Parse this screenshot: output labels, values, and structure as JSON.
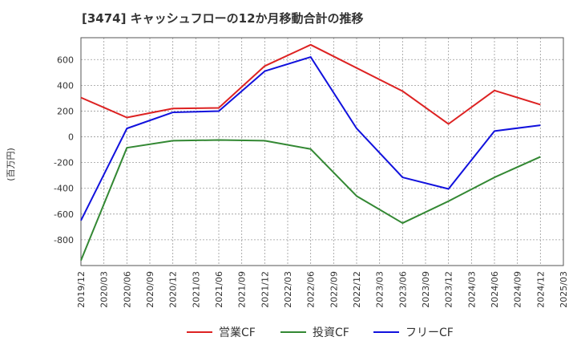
{
  "chart_data": {
    "type": "line",
    "title": "[3474]  キャッシュフローの12か月移動合計の推移",
    "xlabel": "",
    "ylabel": "(百万円)",
    "x": [
      "2019/12",
      "2020/03",
      "2020/06",
      "2020/09",
      "2020/12",
      "2021/03",
      "2021/06",
      "2021/09",
      "2021/12",
      "2022/03",
      "2022/06",
      "2022/09",
      "2022/12",
      "2023/03",
      "2023/06",
      "2023/09",
      "2023/12",
      "2024/03",
      "2024/06",
      "2024/09",
      "2024/12",
      "2025/03"
    ],
    "ylim": [
      -1000,
      770
    ],
    "yticks": [
      600,
      400,
      200,
      0,
      -200,
      -400,
      -600,
      -800
    ],
    "grid": true,
    "legend": "bottom",
    "series": [
      {
        "name": "営業CF",
        "color": "#dd2222",
        "x": [
          "2019/12",
          "2020/06",
          "2020/12",
          "2021/06",
          "2021/12",
          "2022/06",
          "2023/06",
          "2023/12",
          "2024/06",
          "2024/12"
        ],
        "values": [
          305,
          150,
          220,
          225,
          550,
          715,
          355,
          100,
          360,
          250
        ]
      },
      {
        "name": "投資CF",
        "color": "#338833",
        "x": [
          "2019/12",
          "2020/06",
          "2020/12",
          "2021/06",
          "2021/12",
          "2022/06",
          "2022/12",
          "2023/06",
          "2023/12",
          "2024/06",
          "2024/12"
        ],
        "values": [
          -960,
          -85,
          -30,
          -25,
          -30,
          -95,
          -460,
          -670,
          -500,
          -315,
          -155
        ]
      },
      {
        "name": "フリーCF",
        "color": "#1111dd",
        "x": [
          "2019/12",
          "2020/06",
          "2020/12",
          "2021/06",
          "2021/12",
          "2022/06",
          "2022/12",
          "2023/06",
          "2023/12",
          "2024/06",
          "2024/12"
        ],
        "values": [
          -650,
          65,
          190,
          200,
          510,
          620,
          65,
          -315,
          -405,
          45,
          90
        ]
      }
    ]
  }
}
